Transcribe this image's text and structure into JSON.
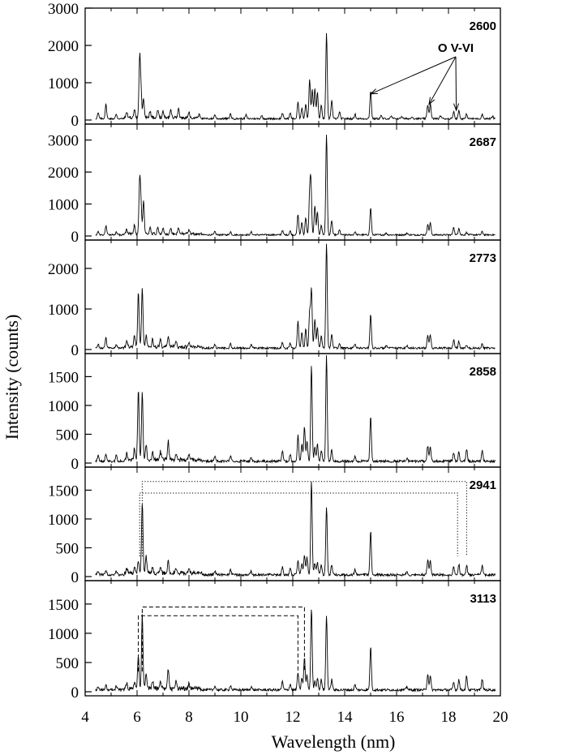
{
  "chart_data": {
    "type": "line",
    "xlabel": "Wavelength (nm)",
    "ylabel": "Intensity (counts)",
    "xlim": [
      4,
      20
    ],
    "x_ticks": [
      "4",
      "6",
      "8",
      "10",
      "12",
      "14",
      "16",
      "18",
      "20"
    ],
    "x_tick_values": [
      4,
      6,
      8,
      10,
      12,
      14,
      16,
      18,
      20
    ],
    "annotation": {
      "text": "O V-VI",
      "arrow_targets": [
        {
          "x": 15.0,
          "y": 700
        },
        {
          "x": 17.25,
          "y": 420
        },
        {
          "x": 18.3,
          "y": 260
        }
      ]
    },
    "panels": [
      {
        "label": "2600",
        "ylim": [
          0,
          3000
        ],
        "y_ticks": [
          0,
          1000,
          2000,
          3000
        ],
        "y_tick_labels": [
          "0",
          "1000",
          "2000",
          "3000"
        ],
        "baseline": 40,
        "peaks": [
          [
            4.5,
            150
          ],
          [
            4.8,
            380
          ],
          [
            5.2,
            120
          ],
          [
            5.6,
            150
          ],
          [
            5.9,
            200
          ],
          [
            6.1,
            1550
          ],
          [
            6.15,
            700
          ],
          [
            6.25,
            480
          ],
          [
            6.5,
            180
          ],
          [
            6.8,
            220
          ],
          [
            7.0,
            150
          ],
          [
            7.3,
            200
          ],
          [
            7.6,
            250
          ],
          [
            8.0,
            130
          ],
          [
            8.4,
            100
          ],
          [
            9.0,
            110
          ],
          [
            9.6,
            130
          ],
          [
            10.2,
            100
          ],
          [
            10.8,
            90
          ],
          [
            11.6,
            150
          ],
          [
            11.9,
            150
          ],
          [
            12.2,
            450
          ],
          [
            12.35,
            300
          ],
          [
            12.5,
            400
          ],
          [
            12.65,
            1050
          ],
          [
            12.75,
            780
          ],
          [
            12.85,
            800
          ],
          [
            12.95,
            700
          ],
          [
            13.1,
            350
          ],
          [
            13.3,
            2280
          ],
          [
            13.5,
            500
          ],
          [
            13.8,
            180
          ],
          [
            14.4,
            120
          ],
          [
            15.0,
            750
          ],
          [
            15.4,
            80
          ],
          [
            15.8,
            60
          ],
          [
            16.2,
            70
          ],
          [
            16.6,
            60
          ],
          [
            17.2,
            380
          ],
          [
            17.3,
            400
          ],
          [
            17.7,
            80
          ],
          [
            18.2,
            200
          ],
          [
            18.4,
            220
          ],
          [
            18.7,
            120
          ],
          [
            19.3,
            120
          ],
          [
            19.7,
            60
          ]
        ]
      },
      {
        "label": "2687",
        "ylim": [
          0,
          3500
        ],
        "y_ticks": [
          0,
          1000,
          2000,
          3000
        ],
        "y_tick_labels": [
          "0",
          "1000",
          "2000",
          "3000"
        ],
        "baseline": 40,
        "peaks": [
          [
            4.5,
            100
          ],
          [
            4.8,
            280
          ],
          [
            5.2,
            100
          ],
          [
            5.6,
            150
          ],
          [
            5.9,
            300
          ],
          [
            6.1,
            1650
          ],
          [
            6.15,
            900
          ],
          [
            6.25,
            1050
          ],
          [
            6.5,
            200
          ],
          [
            6.8,
            200
          ],
          [
            7.0,
            180
          ],
          [
            7.3,
            180
          ],
          [
            7.6,
            200
          ],
          [
            8.0,
            120
          ],
          [
            9.0,
            100
          ],
          [
            9.6,
            100
          ],
          [
            10.4,
            90
          ],
          [
            11.6,
            140
          ],
          [
            11.9,
            120
          ],
          [
            12.2,
            650
          ],
          [
            12.35,
            400
          ],
          [
            12.5,
            550
          ],
          [
            12.65,
            1200
          ],
          [
            12.7,
            1550
          ],
          [
            12.85,
            900
          ],
          [
            12.95,
            700
          ],
          [
            13.1,
            300
          ],
          [
            13.3,
            3150
          ],
          [
            13.5,
            450
          ],
          [
            13.8,
            150
          ],
          [
            14.4,
            100
          ],
          [
            15.0,
            850
          ],
          [
            15.6,
            60
          ],
          [
            16.4,
            60
          ],
          [
            17.2,
            330
          ],
          [
            17.3,
            380
          ],
          [
            18.2,
            250
          ],
          [
            18.4,
            220
          ],
          [
            18.7,
            80
          ],
          [
            19.3,
            100
          ]
        ]
      },
      {
        "label": "2773",
        "ylim": [
          0,
          2700
        ],
        "y_ticks": [
          0,
          1000,
          2000
        ],
        "y_tick_labels": [
          "0",
          "1000",
          "2000"
        ],
        "baseline": 40,
        "peaks": [
          [
            4.5,
            100
          ],
          [
            4.8,
            250
          ],
          [
            5.2,
            90
          ],
          [
            5.6,
            120
          ],
          [
            5.9,
            300
          ],
          [
            6.05,
            1350
          ],
          [
            6.2,
            1450
          ],
          [
            6.35,
            300
          ],
          [
            6.6,
            180
          ],
          [
            6.9,
            180
          ],
          [
            7.2,
            250
          ],
          [
            7.5,
            150
          ],
          [
            8.0,
            100
          ],
          [
            9.0,
            90
          ],
          [
            9.6,
            100
          ],
          [
            10.4,
            80
          ],
          [
            11.6,
            130
          ],
          [
            11.9,
            120
          ],
          [
            12.2,
            650
          ],
          [
            12.35,
            400
          ],
          [
            12.5,
            500
          ],
          [
            12.65,
            900
          ],
          [
            12.72,
            1450
          ],
          [
            12.85,
            700
          ],
          [
            12.95,
            500
          ],
          [
            13.1,
            300
          ],
          [
            13.3,
            2600
          ],
          [
            13.5,
            350
          ],
          [
            13.8,
            120
          ],
          [
            14.4,
            100
          ],
          [
            15.0,
            850
          ],
          [
            15.6,
            60
          ],
          [
            16.4,
            60
          ],
          [
            17.2,
            300
          ],
          [
            17.3,
            330
          ],
          [
            18.2,
            200
          ],
          [
            18.4,
            160
          ],
          [
            18.7,
            80
          ],
          [
            19.3,
            100
          ]
        ]
      },
      {
        "label": "2858",
        "ylim": [
          0,
          1900
        ],
        "y_ticks": [
          0,
          500,
          1000,
          1500
        ],
        "y_tick_labels": [
          "0",
          "500",
          "1000",
          "1500"
        ],
        "baseline": 35,
        "peaks": [
          [
            4.5,
            100
          ],
          [
            4.8,
            130
          ],
          [
            5.2,
            100
          ],
          [
            5.6,
            100
          ],
          [
            5.9,
            200
          ],
          [
            6.05,
            1230
          ],
          [
            6.2,
            1180
          ],
          [
            6.35,
            250
          ],
          [
            6.6,
            150
          ],
          [
            6.9,
            150
          ],
          [
            7.2,
            320
          ],
          [
            7.5,
            120
          ],
          [
            8.0,
            100
          ],
          [
            9.0,
            80
          ],
          [
            9.6,
            90
          ],
          [
            10.4,
            70
          ],
          [
            11.6,
            180
          ],
          [
            11.9,
            120
          ],
          [
            12.2,
            450
          ],
          [
            12.35,
            300
          ],
          [
            12.45,
            600
          ],
          [
            12.55,
            350
          ],
          [
            12.72,
            1660
          ],
          [
            12.85,
            250
          ],
          [
            12.95,
            300
          ],
          [
            13.1,
            200
          ],
          [
            13.3,
            1830
          ],
          [
            13.5,
            200
          ],
          [
            14.4,
            90
          ],
          [
            15.0,
            770
          ],
          [
            16.4,
            60
          ],
          [
            17.2,
            270
          ],
          [
            17.3,
            260
          ],
          [
            18.2,
            150
          ],
          [
            18.4,
            160
          ],
          [
            18.7,
            220
          ],
          [
            19.3,
            180
          ]
        ]
      },
      {
        "label": "2941",
        "ylim": [
          0,
          1900
        ],
        "y_ticks": [
          0,
          500,
          1000,
          1500
        ],
        "y_tick_labels": [
          "0",
          "500",
          "1000",
          "1500"
        ],
        "baseline": 35,
        "peaks": [
          [
            4.5,
            60
          ],
          [
            4.8,
            80
          ],
          [
            5.2,
            70
          ],
          [
            5.6,
            80
          ],
          [
            5.9,
            100
          ],
          [
            6.05,
            200
          ],
          [
            6.2,
            1230
          ],
          [
            6.35,
            300
          ],
          [
            6.6,
            130
          ],
          [
            6.9,
            120
          ],
          [
            7.2,
            220
          ],
          [
            7.5,
            100
          ],
          [
            8.0,
            90
          ],
          [
            9.0,
            70
          ],
          [
            9.6,
            80
          ],
          [
            10.4,
            60
          ],
          [
            11.6,
            140
          ],
          [
            11.9,
            100
          ],
          [
            12.2,
            250
          ],
          [
            12.35,
            200
          ],
          [
            12.45,
            350
          ],
          [
            12.55,
            300
          ],
          [
            12.72,
            1650
          ],
          [
            12.85,
            200
          ],
          [
            12.95,
            220
          ],
          [
            13.1,
            180
          ],
          [
            13.3,
            1180
          ],
          [
            13.5,
            180
          ],
          [
            14.4,
            90
          ],
          [
            15.0,
            760
          ],
          [
            16.4,
            60
          ],
          [
            17.2,
            260
          ],
          [
            17.3,
            240
          ],
          [
            18.2,
            130
          ],
          [
            18.4,
            180
          ],
          [
            18.7,
            170
          ],
          [
            19.3,
            160
          ]
        ]
      },
      {
        "label": "3113",
        "ylim": [
          0,
          1900
        ],
        "y_ticks": [
          0,
          500,
          1000,
          1500
        ],
        "y_tick_labels": [
          "0",
          "500",
          "1000",
          "1500"
        ],
        "baseline": 35,
        "peaks": [
          [
            4.5,
            60
          ],
          [
            4.8,
            80
          ],
          [
            5.2,
            70
          ],
          [
            5.6,
            80
          ],
          [
            5.9,
            100
          ],
          [
            6.05,
            550
          ],
          [
            6.2,
            1230
          ],
          [
            6.35,
            250
          ],
          [
            6.6,
            130
          ],
          [
            6.9,
            120
          ],
          [
            7.2,
            330
          ],
          [
            7.5,
            100
          ],
          [
            8.0,
            90
          ],
          [
            9.0,
            70
          ],
          [
            9.6,
            80
          ],
          [
            10.4,
            60
          ],
          [
            11.6,
            140
          ],
          [
            11.9,
            100
          ],
          [
            12.2,
            300
          ],
          [
            12.35,
            200
          ],
          [
            12.45,
            550
          ],
          [
            12.55,
            250
          ],
          [
            12.72,
            1400
          ],
          [
            12.85,
            150
          ],
          [
            12.95,
            200
          ],
          [
            13.1,
            180
          ],
          [
            13.3,
            1280
          ],
          [
            13.5,
            180
          ],
          [
            14.4,
            90
          ],
          [
            15.0,
            740
          ],
          [
            16.4,
            60
          ],
          [
            17.2,
            280
          ],
          [
            17.3,
            230
          ],
          [
            18.2,
            130
          ],
          [
            18.4,
            180
          ],
          [
            18.7,
            240
          ],
          [
            19.3,
            180
          ]
        ]
      }
    ],
    "brackets": [
      {
        "panel": 4,
        "style": "dotted",
        "x1": 6.2,
        "x2": 18.7,
        "y": 1650
      },
      {
        "panel": 4,
        "style": "dotted",
        "x1": 6.1,
        "x2": 18.35,
        "y": 1450
      },
      {
        "panel": 5,
        "style": "dashed",
        "x1": 6.2,
        "x2": 12.45,
        "y": 1450
      },
      {
        "panel": 5,
        "style": "dashed",
        "x1": 6.05,
        "x2": 12.2,
        "y": 1300
      }
    ]
  }
}
